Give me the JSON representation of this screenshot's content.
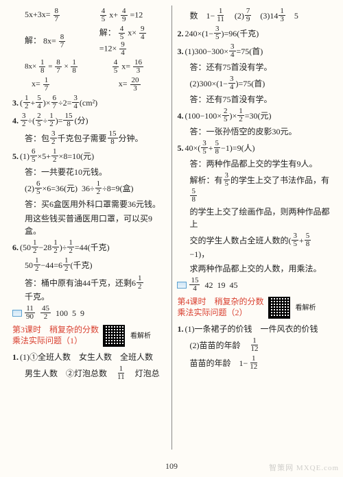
{
  "pageNumber": "109",
  "watermark": "智策网 MXQE.com",
  "left": {
    "eqRow1a": "5x+3x=",
    "eqRow1b_a": "x+",
    "eqRow1b_b": "=12",
    "solve": "解：",
    "eqRow2a": "8x=",
    "eqRow2b_a": "x×",
    "eqRow2b_b": "=12×",
    "eqRow3a_a": "8x×",
    "eqRow3a_b": "=",
    "eqRow3a_c": "×",
    "eqRow3b_a": "x=",
    "eqRow4a_a": "x=",
    "eqRow4b_a": "x=",
    "q3_num": "3.",
    "q3_a": "(",
    "q3_b": "+",
    "q3_c": ")×",
    "q3_d": "÷2=",
    "q3_e": "(cm²)",
    "q4_num": "4.",
    "q4_a": "÷(",
    "q4_b": "÷",
    "q4_c": ")=",
    "q4_d": "(分)",
    "q4_ans_a": "答：包",
    "q4_ans_b": "千克包子需要",
    "q4_ans_c": "分钟。",
    "q5_num": "5.",
    "q5_1": "(1)",
    "q5_1a": "×5+",
    "q5_1b": "×8=10(元)",
    "q5_1ans": "答：一共要花10元钱。",
    "q5_2": "(2)",
    "q5_2a": "×6=36(元)",
    "q5_2b": "36÷",
    "q5_2c": "÷8=9(盒)",
    "q5_2ans1": "答：买6盒医用外科口罩需要36元钱。",
    "q5_2ans2": "用这些钱买普通医用口罩，可以买9盒。",
    "q6_num": "6.",
    "q6_a": "(50",
    "q6_b": "−28",
    "q6_c": ")÷",
    "q6_d": "=44(千克)",
    "q6_2a": "50",
    "q6_2b": "−44=6",
    "q6_2c": "(千克)",
    "q6_ans_a": "答：桶中原有油44千克，还剩6",
    "q6_ans_b": "千克。",
    "fill1_a": "",
    "fill1_b": "",
    "fill1_c": "100",
    "fill1_d": "5",
    "fill1_e": "9",
    "lesson3a": "第3课时　稍复杂的分数",
    "lesson3b": "乘法实际问题（1）",
    "qrSide": "看解析",
    "l1_num": "1.",
    "l1_1": "(1)①全班人数　女生人数　全班人数",
    "l1_2": "男生人数　②灯泡总数　",
    "l1_3": "　灯泡总"
  },
  "right": {
    "r1a": "数　1−",
    "r1b": "　(2)",
    "r1c": "　(3)14",
    "r1d": "　5",
    "q2_num": "2.",
    "q2_a": "240×(1−",
    "q2_b": ")=96(千克)",
    "q3_num": "3.",
    "q3_1": "(1)300−300×",
    "q3_1b": "=75(首)",
    "q3_1ans": "答：还有75首没有学。",
    "q3_2": "(2)300×(1−",
    "q3_2b": ")=75(首)",
    "q3_2ans": "答：还有75首没有学。",
    "q4_num": "4.",
    "q4_a": "(100−100×",
    "q4_b": ")×",
    "q4_c": "=30(元)",
    "q4_ans": "答：一张孙悟空的皮影30元。",
    "q5_num": "5.",
    "q5_a": "40×(",
    "q5_b": "+",
    "q5_c": "−1)=9(人)",
    "q5_ans": "答：两种作品都上交的学生有9人。",
    "expl1a": "解析：有",
    "expl1b": "的学生上交了书法作品，有",
    "expl2": "的学生上交了绘画作品，则两种作品都上",
    "expl3a": "交的学生人数占全班人数的(",
    "expl3b": "+",
    "expl3c": "−1)，",
    "expl4": "求两种作品都上交的人数，用乘法。",
    "fill2_a": "",
    "fill2_b": "42",
    "fill2_c": "19",
    "fill2_d": "45",
    "lesson4a": "第4课时　稍复杂的分数",
    "lesson4b": "乘法实际问题（2）",
    "r1_num": "1.",
    "r1_1": "(1)一条裙子的价钱　一件风衣的价钱",
    "r1_2": "(2)苗苗的年龄　",
    "r1_3a": "苗苗的年龄　1−"
  },
  "fracs": {
    "8_7": {
      "n": "8",
      "d": "7"
    },
    "4_5": {
      "n": "4",
      "d": "5"
    },
    "4_9": {
      "n": "4",
      "d": "9"
    },
    "1_8": {
      "n": "1",
      "d": "8"
    },
    "9_4": {
      "n": "9",
      "d": "4"
    },
    "16_3": {
      "n": "16",
      "d": "3"
    },
    "1_7": {
      "n": "1",
      "d": "7"
    },
    "20_3": {
      "n": "20",
      "d": "3"
    },
    "1_2": {
      "n": "1",
      "d": "2"
    },
    "5_4": {
      "n": "5",
      "d": "4"
    },
    "6_7": {
      "n": "6",
      "d": "7"
    },
    "3_4": {
      "n": "3",
      "d": "4"
    },
    "3_2": {
      "n": "3",
      "d": "2"
    },
    "2_5": {
      "n": "2",
      "d": "5"
    },
    "15_8": {
      "n": "15",
      "d": "8"
    },
    "6_5": {
      "n": "6",
      "d": "5"
    },
    "11_90": {
      "n": "11",
      "d": "90"
    },
    "45_2": {
      "n": "45",
      "d": "2"
    },
    "1_11": {
      "n": "1",
      "d": "11"
    },
    "7_9": {
      "n": "7",
      "d": "9"
    },
    "1_3": {
      "n": "1",
      "d": "3"
    },
    "3_5": {
      "n": "3",
      "d": "5"
    },
    "5_8": {
      "n": "5",
      "d": "8"
    },
    "15_4": {
      "n": "15",
      "d": "4"
    },
    "1_12": {
      "n": "1",
      "d": "12"
    }
  }
}
